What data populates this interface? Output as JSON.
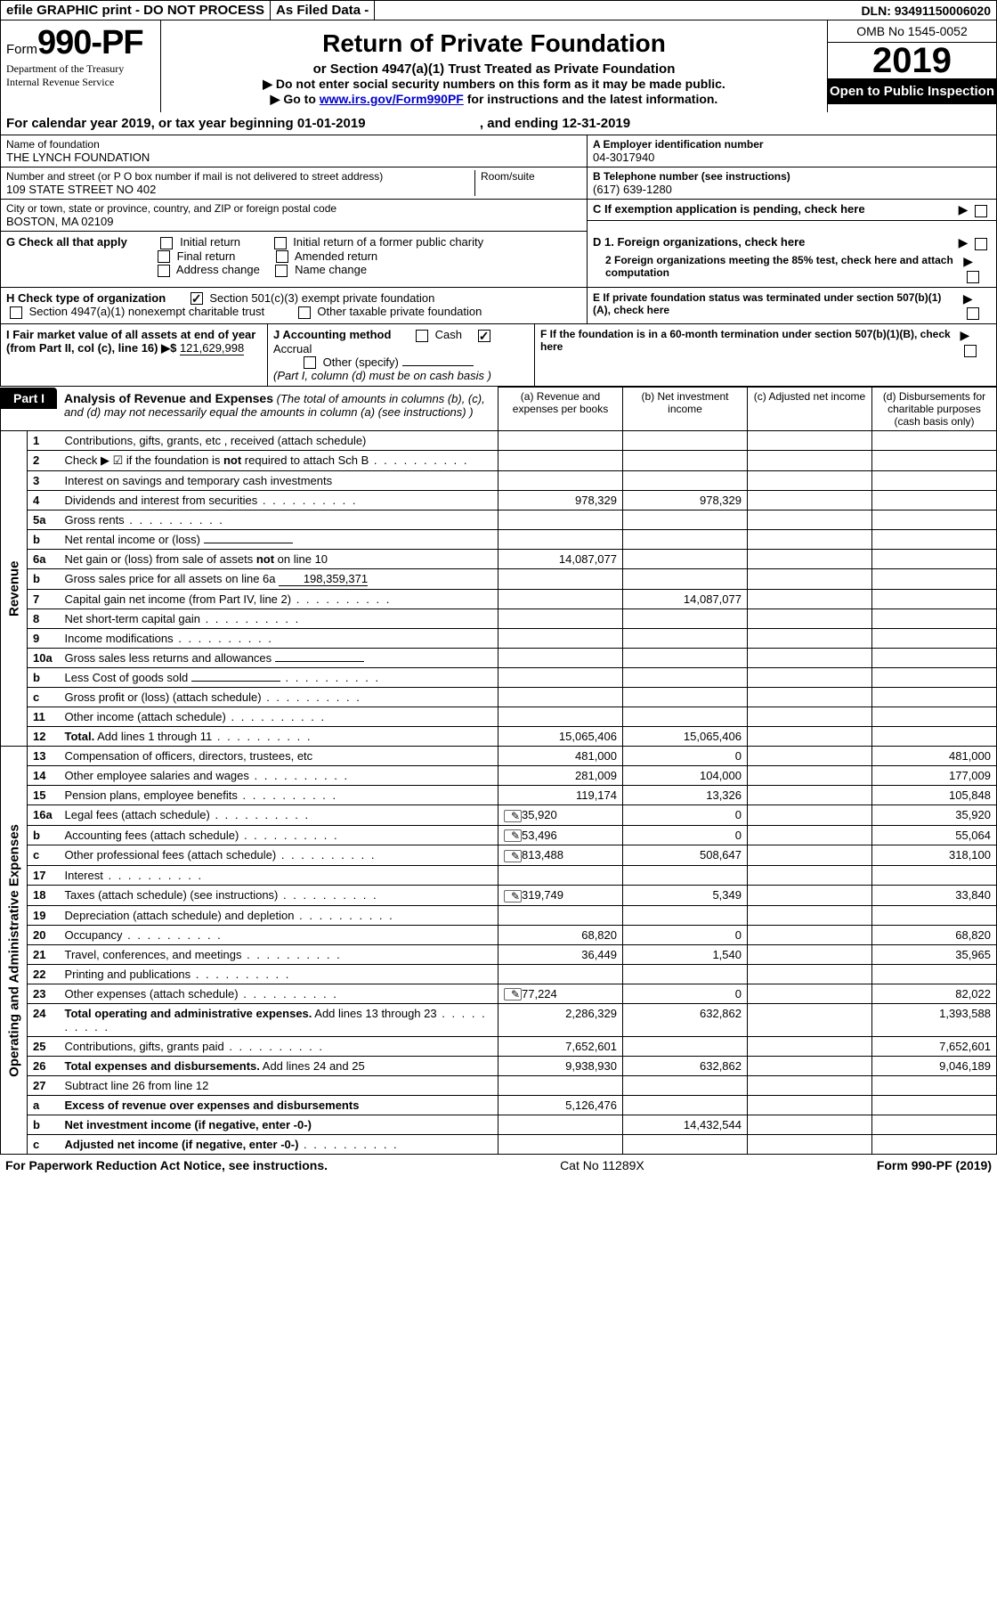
{
  "top": {
    "efile": "efile GRAPHIC print - DO NOT PROCESS",
    "asfiled": "As Filed Data -",
    "dln": "DLN: 93491150006020"
  },
  "header": {
    "form_prefix": "Form",
    "form_no": "990-PF",
    "dept1": "Department of the Treasury",
    "dept2": "Internal Revenue Service",
    "title": "Return of Private Foundation",
    "subtitle": "or Section 4947(a)(1) Trust Treated as Private Foundation",
    "note1": "▶ Do not enter social security numbers on this form as it may be made public.",
    "note2_pre": "▶ Go to ",
    "note2_link": "www.irs.gov/Form990PF",
    "note2_post": " for instructions and the latest information.",
    "omb": "OMB No 1545-0052",
    "year": "2019",
    "open": "Open to Public Inspection"
  },
  "cal": {
    "pre": "For calendar year 2019, or tax year beginning ",
    "begin": "01-01-2019",
    "mid": ", and ending ",
    "end": "12-31-2019"
  },
  "name": {
    "label": "Name of foundation",
    "value": "THE LYNCH FOUNDATION"
  },
  "ein": {
    "label": "A Employer identification number",
    "value": "04-3017940"
  },
  "addr": {
    "label": "Number and street (or P O  box number if mail is not delivered to street address)",
    "room_label": "Room/suite",
    "value": "109 STATE STREET NO 402"
  },
  "tel": {
    "label": "B Telephone number (see instructions)",
    "value": "(617) 639-1280"
  },
  "city": {
    "label": "City or town, state or province, country, and ZIP or foreign postal code",
    "value": "BOSTON, MA  02109"
  },
  "c_exempt": "C  If exemption application is pending, check here",
  "g": {
    "label": "G Check all that apply",
    "opts": [
      "Initial return",
      "Initial return of a former public charity",
      "Final return",
      "Amended return",
      "Address change",
      "Name change"
    ]
  },
  "d": {
    "d1": "D 1. Foreign organizations, check here",
    "d2": "2  Foreign organizations meeting the 85% test, check here and attach computation"
  },
  "e": "E  If private foundation status was terminated under section 507(b)(1)(A), check here",
  "f": "F  If the foundation is in a 60-month termination under section 507(b)(1)(B), check here",
  "h": {
    "label": "H Check type of organization",
    "opt1": "Section 501(c)(3) exempt private foundation",
    "opt2": "Section 4947(a)(1) nonexempt charitable trust",
    "opt3": "Other taxable private foundation"
  },
  "i": {
    "label": "I Fair market value of all assets at end of year (from Part II, col  (c), line 16) ▶$ ",
    "value": "121,629,998"
  },
  "j": {
    "label": "J Accounting method",
    "cash": "Cash",
    "accrual": "Accrual",
    "other": "Other (specify)",
    "note": "(Part I, column (d) must be on cash basis )"
  },
  "part1": {
    "label": "Part I",
    "title": "Analysis of Revenue and Expenses",
    "note": " (The total of amounts in columns (b), (c), and (d) may not necessarily equal the amounts in column (a) (see instructions) )"
  },
  "cols": {
    "a": "(a)   Revenue and expenses per books",
    "b": "(b)   Net investment income",
    "c": "(c)   Adjusted net income",
    "d": "(d)   Disbursements for charitable purposes (cash basis only)"
  },
  "side_rev": "Revenue",
  "side_exp": "Operating and Administrative Expenses",
  "rows": [
    {
      "n": "1",
      "d": "Contributions, gifts, grants, etc , received (attach schedule)",
      "a": "",
      "b": "",
      "c": "",
      "e": ""
    },
    {
      "n": "2",
      "d": "Check ▶ ☑ if the foundation is not required to attach Sch  B",
      "dots": true,
      "a": "",
      "b": "",
      "c": "",
      "e": ""
    },
    {
      "n": "3",
      "d": "Interest on savings and temporary cash investments",
      "a": "",
      "b": "",
      "c": "",
      "e": ""
    },
    {
      "n": "4",
      "d": "Dividends and interest from securities",
      "dots": true,
      "a": "978,329",
      "b": "978,329",
      "c": "",
      "e": ""
    },
    {
      "n": "5a",
      "d": "Gross rents",
      "dots": true,
      "a": "",
      "b": "",
      "c": "",
      "e": ""
    },
    {
      "n": "b",
      "d": "Net rental income or (loss)",
      "inline": "",
      "a": "",
      "b": "",
      "c": "",
      "e": ""
    },
    {
      "n": "6a",
      "d": "Net gain or (loss) from sale of assets not on line 10",
      "a": "14,087,077",
      "b": "",
      "c": "",
      "e": ""
    },
    {
      "n": "b",
      "d": "Gross sales price for all assets on line 6a",
      "inline": "198,359,371",
      "a": "",
      "b": "",
      "c": "",
      "e": ""
    },
    {
      "n": "7",
      "d": "Capital gain net income (from Part IV, line 2)",
      "dots": true,
      "a": "",
      "b": "14,087,077",
      "c": "",
      "e": ""
    },
    {
      "n": "8",
      "d": "Net short-term capital gain",
      "dots": true,
      "a": "",
      "b": "",
      "c": "",
      "e": ""
    },
    {
      "n": "9",
      "d": "Income modifications",
      "dots": true,
      "a": "",
      "b": "",
      "c": "",
      "e": ""
    },
    {
      "n": "10a",
      "d": "Gross sales less returns and allowances",
      "inline": "",
      "a": "",
      "b": "",
      "c": "",
      "e": ""
    },
    {
      "n": "b",
      "d": "Less  Cost of goods sold",
      "dots": true,
      "inline": "",
      "a": "",
      "b": "",
      "c": "",
      "e": ""
    },
    {
      "n": "c",
      "d": "Gross profit or (loss) (attach schedule)",
      "dots": true,
      "a": "",
      "b": "",
      "c": "",
      "e": ""
    },
    {
      "n": "11",
      "d": "Other income (attach schedule)",
      "dots": true,
      "a": "",
      "b": "",
      "c": "",
      "e": ""
    },
    {
      "n": "12",
      "d": "Total. Add lines 1 through 11",
      "bold": true,
      "dots": true,
      "a": "15,065,406",
      "b": "15,065,406",
      "c": "",
      "e": ""
    }
  ],
  "exp_rows": [
    {
      "n": "13",
      "d": "Compensation of officers, directors, trustees, etc",
      "a": "481,000",
      "b": "0",
      "c": "",
      "e": "481,000"
    },
    {
      "n": "14",
      "d": "Other employee salaries and wages",
      "dots": true,
      "a": "281,009",
      "b": "104,000",
      "c": "",
      "e": "177,009"
    },
    {
      "n": "15",
      "d": "Pension plans, employee benefits",
      "dots": true,
      "a": "119,174",
      "b": "13,326",
      "c": "",
      "e": "105,848"
    },
    {
      "n": "16a",
      "d": "Legal fees (attach schedule)",
      "dots": true,
      "icon": true,
      "a": "35,920",
      "b": "0",
      "c": "",
      "e": "35,920"
    },
    {
      "n": "b",
      "d": "Accounting fees (attach schedule)",
      "dots": true,
      "icon": true,
      "a": "53,496",
      "b": "0",
      "c": "",
      "e": "55,064"
    },
    {
      "n": "c",
      "d": "Other professional fees (attach schedule)",
      "dots": true,
      "icon": true,
      "a": "813,488",
      "b": "508,647",
      "c": "",
      "e": "318,100"
    },
    {
      "n": "17",
      "d": "Interest",
      "dots": true,
      "a": "",
      "b": "",
      "c": "",
      "e": ""
    },
    {
      "n": "18",
      "d": "Taxes (attach schedule) (see instructions)",
      "dots": true,
      "icon": true,
      "a": "319,749",
      "b": "5,349",
      "c": "",
      "e": "33,840"
    },
    {
      "n": "19",
      "d": "Depreciation (attach schedule) and depletion",
      "dots": true,
      "a": "",
      "b": "",
      "c": "",
      "e": ""
    },
    {
      "n": "20",
      "d": "Occupancy",
      "dots": true,
      "a": "68,820",
      "b": "0",
      "c": "",
      "e": "68,820"
    },
    {
      "n": "21",
      "d": "Travel, conferences, and meetings",
      "dots": true,
      "a": "36,449",
      "b": "1,540",
      "c": "",
      "e": "35,965"
    },
    {
      "n": "22",
      "d": "Printing and publications",
      "dots": true,
      "a": "",
      "b": "",
      "c": "",
      "e": ""
    },
    {
      "n": "23",
      "d": "Other expenses (attach schedule)",
      "dots": true,
      "icon": true,
      "a": "77,224",
      "b": "0",
      "c": "",
      "e": "82,022"
    },
    {
      "n": "24",
      "d": "Total operating and administrative expenses. Add lines 13 through 23",
      "bold": true,
      "dots": true,
      "a": "2,286,329",
      "b": "632,862",
      "c": "",
      "e": "1,393,588"
    },
    {
      "n": "25",
      "d": "Contributions, gifts, grants paid",
      "dots": true,
      "a": "7,652,601",
      "b": "",
      "c": "",
      "e": "7,652,601"
    },
    {
      "n": "26",
      "d": "Total expenses and disbursements. Add lines 24 and 25",
      "bold": true,
      "a": "9,938,930",
      "b": "632,862",
      "c": "",
      "e": "9,046,189"
    },
    {
      "n": "27",
      "d": "Subtract line 26 from line 12",
      "a": "",
      "b": "",
      "c": "",
      "e": ""
    },
    {
      "n": "a",
      "d": "Excess of revenue over expenses and disbursements",
      "bold": true,
      "a": "5,126,476",
      "b": "",
      "c": "",
      "e": ""
    },
    {
      "n": "b",
      "d": "Net investment income (if negative, enter -0-)",
      "bold": true,
      "a": "",
      "b": "14,432,544",
      "c": "",
      "e": ""
    },
    {
      "n": "c",
      "d": "Adjusted net income (if negative, enter -0-)",
      "bold": true,
      "dots": true,
      "a": "",
      "b": "",
      "c": "",
      "e": ""
    }
  ],
  "footer": {
    "left": "For Paperwork Reduction Act Notice, see instructions.",
    "mid": "Cat No  11289X",
    "right": "Form 990-PF (2019)"
  }
}
